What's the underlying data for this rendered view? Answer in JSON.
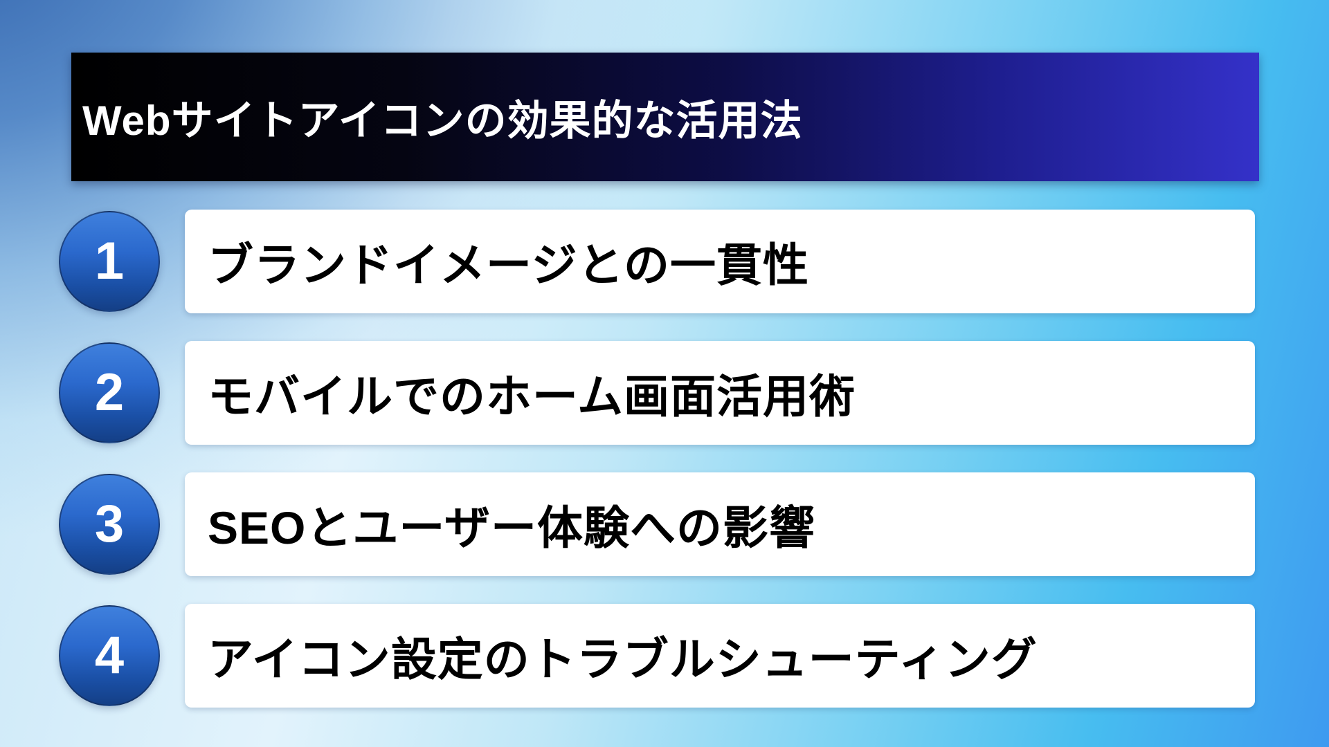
{
  "slide": {
    "title": "Webサイトアイコンの効果的な活用法",
    "items": [
      {
        "number": "1",
        "label": "ブランドイメージとの一貫性"
      },
      {
        "number": "2",
        "label": "モバイルでのホーム画面活用術"
      },
      {
        "number": "3",
        "label": "SEOとユーザー体験への影響"
      },
      {
        "number": "4",
        "label": "アイコン設定のトラブルシューティング"
      }
    ],
    "colors": {
      "background_top_left": "#4a7fc2",
      "background_center": "#e2f3fc",
      "background_right_cyan": "#4cc2f1",
      "background_bottom_right": "#3e9af0",
      "header_gradient_start": "#000000",
      "header_gradient_end": "#3431c9",
      "header_text": "#ffffff",
      "card_background": "#ffffff",
      "card_text": "#000000",
      "badge_gradient_top": "#3f80dd",
      "badge_gradient_bottom": "#143f86",
      "badge_border": "#122850",
      "badge_text": "#ffffff"
    }
  }
}
